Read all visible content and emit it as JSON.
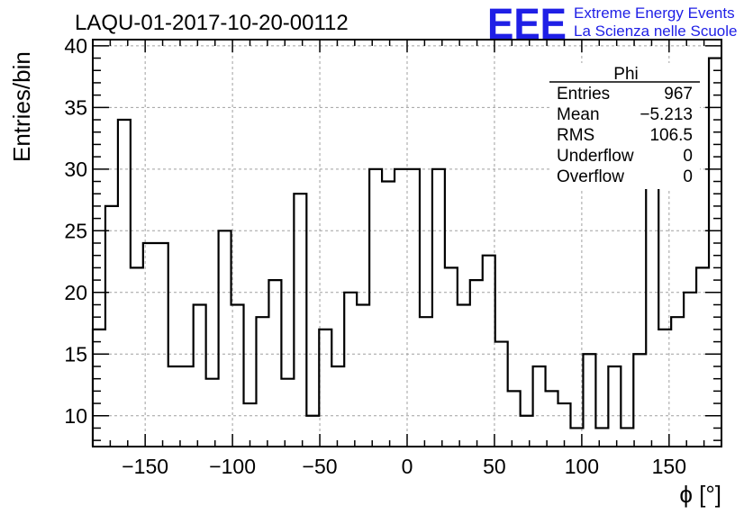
{
  "chart_data": {
    "type": "histogram",
    "title": "LAQU-01-2017-10-20-00112",
    "xlabel": "ϕ [°]",
    "ylabel": "Entries/bin",
    "xlim": [
      -180,
      180
    ],
    "ylim": [
      7.5,
      40.5
    ],
    "bin_width": 7.2,
    "grid": true,
    "x_ticks": [
      "−150",
      "−100",
      "−50",
      "0",
      "50",
      "100",
      "150"
    ],
    "x_tick_values": [
      -150,
      -100,
      -50,
      0,
      50,
      100,
      150
    ],
    "y_ticks": [
      "10",
      "15",
      "20",
      "25",
      "30",
      "35",
      "40"
    ],
    "y_tick_values": [
      10,
      15,
      20,
      25,
      30,
      35,
      40
    ],
    "bin_low_edges": [
      -180,
      -172.8,
      -165.6,
      -158.4,
      -151.2,
      -144,
      -136.8,
      -129.6,
      -122.4,
      -115.2,
      -108,
      -100.8,
      -93.6,
      -86.4,
      -79.2,
      -72,
      -64.8,
      -57.6,
      -50.4,
      -43.2,
      -36,
      -28.8,
      -21.6,
      -14.4,
      -7.2,
      0,
      7.2,
      14.4,
      21.6,
      28.8,
      36,
      43.2,
      50.4,
      57.6,
      64.8,
      72,
      79.2,
      86.4,
      93.6,
      100.8,
      108,
      115.2,
      122.4,
      129.6,
      136.8,
      144,
      151.2,
      158.4,
      165.6,
      172.8
    ],
    "values": [
      17,
      27,
      34,
      22,
      24,
      24,
      14,
      14,
      19,
      13,
      25,
      19,
      11,
      18,
      21,
      13,
      28,
      10,
      17,
      14,
      20,
      19,
      30,
      29,
      30,
      30,
      18,
      30,
      22,
      19,
      21,
      23,
      16,
      12,
      10,
      14,
      12,
      11,
      9,
      15,
      9,
      14,
      9,
      15,
      30,
      17,
      18,
      20,
      22,
      39
    ]
  },
  "stats": {
    "name": "Phi",
    "rows": [
      {
        "label": "Entries",
        "value": "967"
      },
      {
        "label": "Mean",
        "value": "−5.213"
      },
      {
        "label": "RMS",
        "value": "106.5"
      },
      {
        "label": "Underflow",
        "value": "0"
      },
      {
        "label": "Overflow",
        "value": "0"
      }
    ]
  },
  "logo": {
    "mark": "EEE",
    "line1": "Extreme Energy Events",
    "line2": "La Scienza nelle Scuole"
  },
  "colors": {
    "line": "#000000",
    "grid": "#a0a0a0",
    "logo": "#1f1fe6"
  }
}
